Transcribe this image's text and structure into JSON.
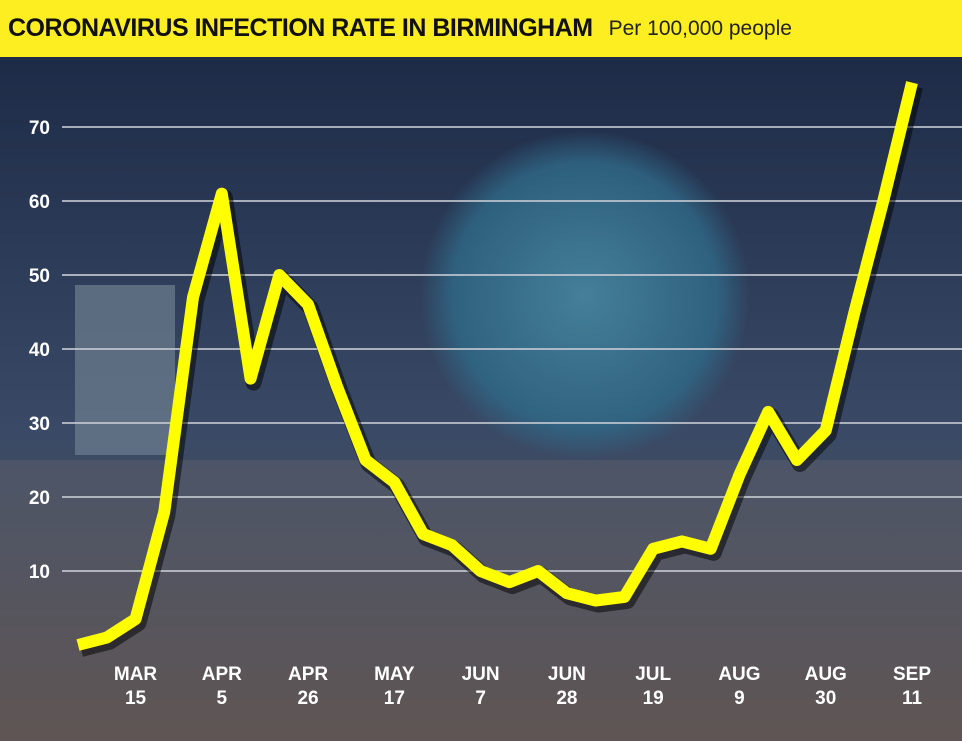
{
  "chart_data": {
    "type": "line",
    "title": "CORONAVIRUS INFECTION RATE IN BIRMINGHAM",
    "subtitle": "Per 100,000 people",
    "categories": [
      null,
      null,
      "MAR 15",
      null,
      null,
      "APR 5",
      null,
      null,
      "APR 26",
      null,
      null,
      "MAY 17",
      null,
      null,
      "JUN 7",
      null,
      null,
      "JUN 28",
      null,
      null,
      "JUL 19",
      null,
      null,
      "AUG 9",
      null,
      null,
      "AUG 30",
      null,
      null,
      "SEP 11"
    ],
    "series": [
      {
        "name": "Infection rate",
        "color": "#ffff00",
        "values": [
          0,
          1,
          3.5,
          18,
          47,
          61,
          36,
          50,
          46,
          35,
          25,
          22,
          15,
          13.5,
          10,
          8.5,
          10,
          7,
          6,
          6.5,
          13,
          14,
          13,
          23,
          31.5,
          25,
          29,
          45,
          60,
          76
        ]
      }
    ],
    "ylim": [
      0,
      80
    ],
    "yticks": [
      10,
      20,
      30,
      40,
      50,
      60,
      70
    ],
    "grid": true
  }
}
